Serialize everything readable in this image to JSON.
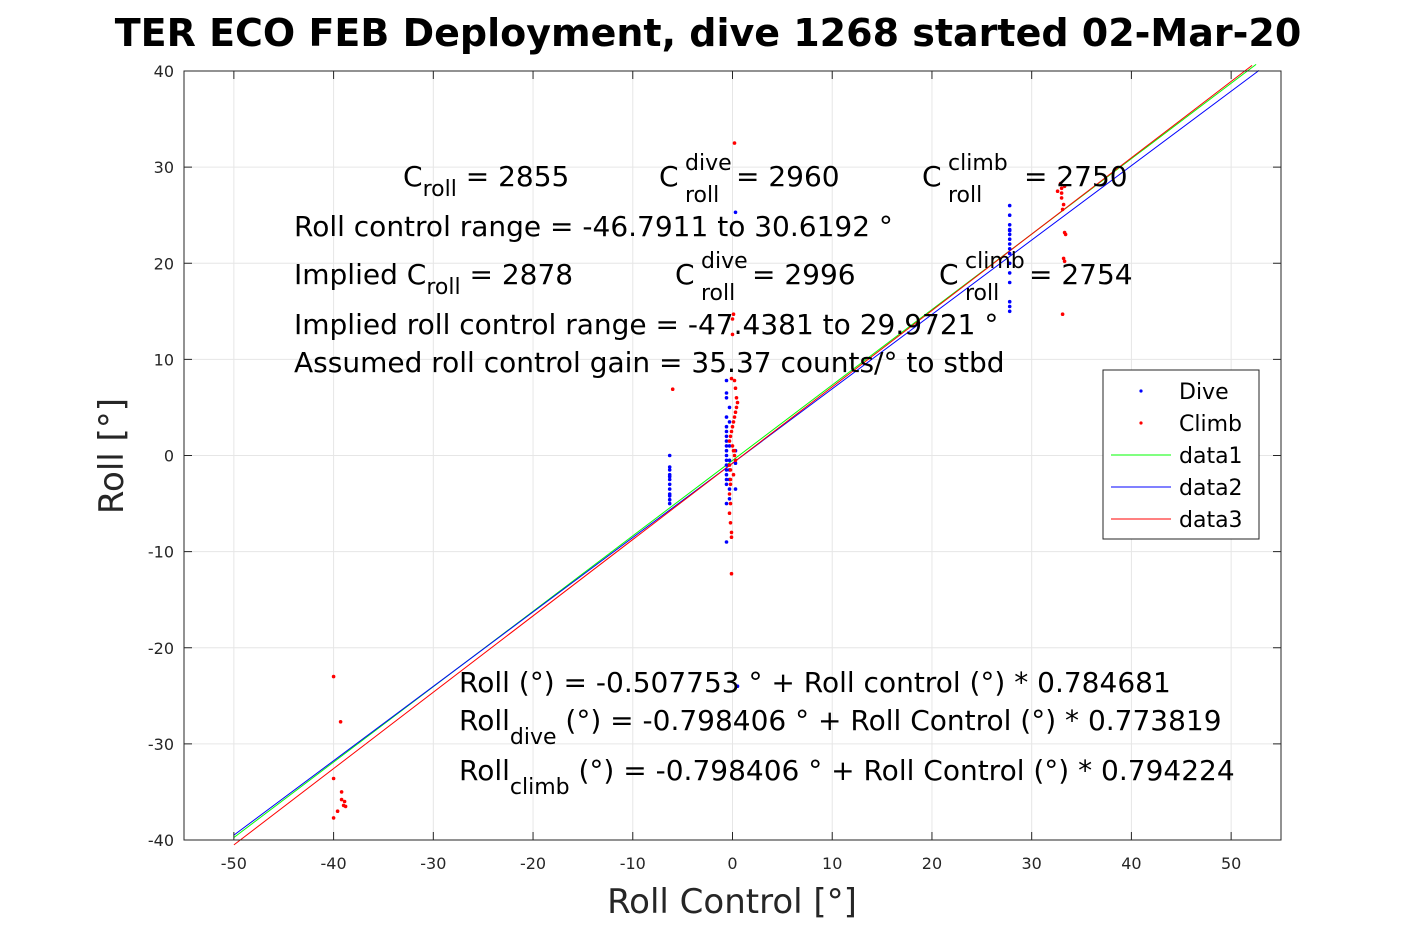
{
  "chart_data": {
    "type": "scatter",
    "title": "TER ECO FEB Deployment, dive 1268 started 02-Mar-20",
    "xlabel": "Roll Control [°]",
    "ylabel": "Roll [°]",
    "xlim": [
      -55,
      55
    ],
    "ylim": [
      -40,
      40
    ],
    "x_ticks": [
      -50,
      -40,
      -30,
      -20,
      -10,
      0,
      10,
      20,
      30,
      40,
      50
    ],
    "y_ticks": [
      -40,
      -30,
      -20,
      -10,
      0,
      10,
      20,
      30,
      40
    ],
    "grid": true,
    "legend_position": "right",
    "series": [
      {
        "name": "Dive",
        "kind": "points",
        "color": "#0000ff",
        "x": [
          -6.3,
          -6.3,
          -6.3,
          -6.3,
          -6.3,
          -6.3,
          -6.3,
          -6.3,
          -6.3,
          -6.3,
          -6.3,
          -6.3,
          -0.6,
          -0.6,
          -0.6,
          -0.6,
          -0.6,
          -0.6,
          -0.6,
          -0.6,
          -0.6,
          -0.6,
          -0.6,
          -0.6,
          -0.6,
          -0.6,
          -0.6,
          -0.6,
          -0.6,
          -0.6,
          -0.6,
          -0.3,
          -0.3,
          -0.3,
          -0.3,
          -0.3,
          -0.3,
          -0.3,
          -0.3,
          0.3,
          0.3,
          0.3,
          0.3,
          0.5,
          27.8,
          27.8,
          27.8,
          27.8,
          27.8,
          27.8,
          27.8,
          27.8,
          27.8,
          27.8,
          27.8,
          27.8,
          27.8,
          27.8,
          27.8,
          27.8
        ],
        "y": [
          0,
          -1.5,
          -2,
          -2.5,
          -3,
          -3.5,
          -4,
          -4.2,
          -1.2,
          -2.2,
          -4.6,
          -5,
          7.8,
          6.5,
          6,
          4,
          3,
          2.5,
          2,
          1.5,
          1,
          0.5,
          0,
          -0.5,
          -1,
          -1.5,
          -2,
          -2.5,
          -3,
          -5,
          -9,
          5,
          3.5,
          1,
          -0.5,
          -1.5,
          -2.5,
          -3.5,
          -4.5,
          0.5,
          -0.8,
          -3.5,
          25.3,
          -24,
          26,
          25,
          24,
          23.5,
          23,
          22.5,
          22,
          21.5,
          21,
          20,
          19,
          18,
          16,
          15.5,
          15,
          23.4
        ]
      },
      {
        "name": "Climb",
        "kind": "points",
        "color": "#ff0000",
        "x": [
          -40,
          -40,
          -39.3,
          -39.2,
          -39.2,
          -39,
          -38.9,
          -38.8,
          -39.6,
          -40,
          -6,
          0.2,
          0.1,
          0,
          0,
          -0.1,
          0.2,
          0.3,
          0.4,
          0.5,
          0.4,
          0.3,
          0.2,
          0.1,
          0,
          -0.1,
          -0.2,
          -0.3,
          0,
          0.1,
          0.2,
          0.3,
          -0.3,
          -0.2,
          0.1,
          -0.2,
          -0.2,
          -0.3,
          -0.2,
          -0.3,
          -0.2,
          -0.1,
          -0.1,
          -0.1,
          0.2,
          32.6,
          32.9,
          33,
          33,
          33.1,
          33.2,
          33.4,
          33.3,
          33.3,
          33.2,
          33.1,
          33,
          33.3
        ],
        "y": [
          -23,
          -33.6,
          -27.7,
          -35,
          -35.8,
          -36.4,
          -36,
          -36.5,
          -37,
          -37.7,
          6.9,
          32.5,
          14.7,
          14.2,
          12.6,
          8,
          7.8,
          7,
          6,
          5.5,
          5,
          4.5,
          4,
          3.5,
          3,
          2.5,
          2,
          1.5,
          1,
          0.5,
          0,
          -0.5,
          -1,
          -1.5,
          -2,
          -2.5,
          -3,
          -4,
          -5,
          -6,
          -7,
          -8,
          -8.5,
          -12.3,
          0.5,
          27.5,
          28.3,
          27.3,
          26.8,
          25.6,
          26.1,
          23,
          23.2,
          20.2,
          20.5,
          14.7,
          27.8,
          28
        ]
      },
      {
        "name": "data1",
        "kind": "line",
        "color": "#00ff00",
        "x": [
          -50,
          52.5
        ],
        "y": [
          -39.74,
          40.69
        ]
      },
      {
        "name": "data2",
        "kind": "line",
        "color": "#0000ff",
        "x": [
          -50,
          52.8
        ],
        "y": [
          -39.49,
          40.06
        ]
      },
      {
        "name": "data3",
        "kind": "line",
        "color": "#ff0000",
        "x": [
          -50,
          52.1
        ],
        "y": [
          -40.51,
          40.58
        ]
      }
    ]
  },
  "annotations": {
    "top_line1": {
      "a": "C",
      "a_sub": "roll",
      "a_val": " = 2855",
      "b": "C",
      "b_sup": "dive",
      "b_sub": "roll",
      "b_val": " = 2960",
      "c": "C",
      "c_sup": "climb",
      "c_sub": "roll",
      "c_val": " = 2750"
    },
    "top_line2": "Roll control range = -46.7911 to 30.6192 °",
    "top_line3": {
      "a": "Implied C",
      "a_sub": "roll",
      "a_val": " = 2878",
      "b": "C",
      "b_sup": "dive",
      "b_sub": "roll",
      "b_val": " = 2996",
      "c": "C",
      "c_sup": "climb",
      "c_sub": "roll",
      "c_val": " = 2754"
    },
    "top_line4": "Implied roll control range = -47.4381 to 29.9721 °",
    "top_line5": "Assumed roll control gain = 35.37 counts/° to stbd",
    "bottom_line1": "Roll (°) = -0.507753 ° + Roll control (°) * 0.784681",
    "bottom_line2": {
      "a": "Roll",
      "a_sub": "dive",
      "rest": " (°) = -0.798406 ° + Roll Control (°) * 0.773819"
    },
    "bottom_line3": {
      "a": "Roll",
      "a_sub": "climb",
      "rest": " (°) = -0.798406 ° + Roll Control (°) * 0.794224"
    }
  }
}
